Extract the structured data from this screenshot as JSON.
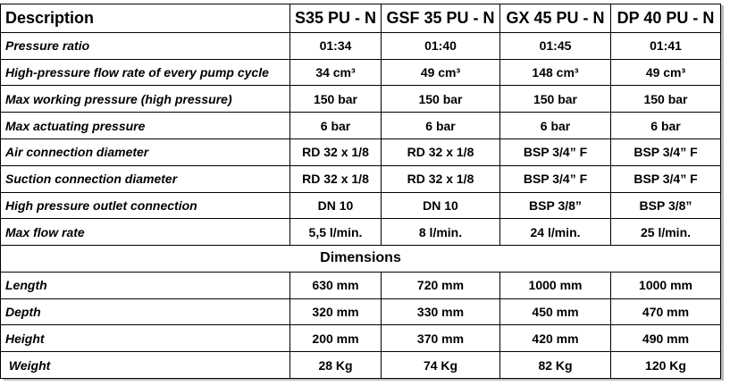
{
  "table": {
    "header": {
      "description": "Description",
      "models": [
        "S35 PU - N",
        "GSF 35 PU - N",
        "GX 45 PU - N",
        "DP 40 PU - N"
      ]
    },
    "rows": [
      {
        "label": "Pressure ratio",
        "values": [
          "01:34",
          "01:40",
          "01:45",
          "01:41"
        ]
      },
      {
        "label": "High-pressure  flow rate of every pump cycle",
        "values": [
          "34 cm³",
          "49 cm³",
          "148 cm³",
          "49 cm³"
        ]
      },
      {
        "label": "Max working pressure (high pressure)",
        "values": [
          "150 bar",
          "150 bar",
          "150 bar",
          "150 bar"
        ]
      },
      {
        "label": "Max actuating pressure",
        "values": [
          "6 bar",
          "6 bar",
          "6 bar",
          "6 bar"
        ]
      },
      {
        "label": "Air connection diameter",
        "values": [
          "RD 32 x 1/8",
          "RD 32 x 1/8",
          "BSP 3/4” F",
          "BSP 3/4” F"
        ]
      },
      {
        "label": "Suction connection diameter",
        "values": [
          "RD 32 x 1/8",
          "RD 32 x 1/8",
          "BSP 3/4” F",
          "BSP 3/4” F"
        ]
      },
      {
        "label": "High pressure outlet connection",
        "values": [
          "DN 10",
          "DN 10",
          "BSP 3/8”",
          "BSP 3/8”"
        ]
      },
      {
        "label": "Max flow rate",
        "values": [
          "5,5 l/min.",
          "8 l/min.",
          "24 l/min.",
          "25 l/min."
        ]
      }
    ],
    "dimensions_title": "Dimensions",
    "dimension_rows": [
      {
        "label": "Length",
        "values": [
          "630 mm",
          "720 mm",
          "1000 mm",
          "1000 mm"
        ]
      },
      {
        "label": "Depth",
        "values": [
          "320 mm",
          "330 mm",
          "450 mm",
          "470 mm"
        ]
      },
      {
        "label": "Height",
        "values": [
          "200 mm",
          "370 mm",
          "420 mm",
          "490 mm"
        ]
      },
      {
        "label": " Weight",
        "values": [
          "28 Kg",
          "74 Kg",
          "82 Kg",
          "120 Kg"
        ]
      }
    ]
  }
}
